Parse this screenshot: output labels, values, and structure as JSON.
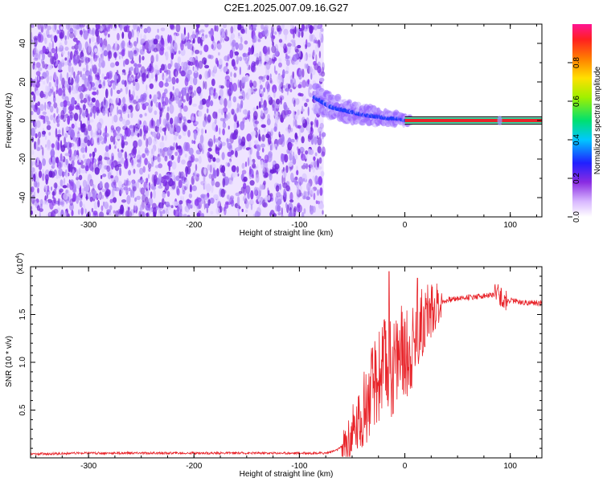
{
  "title": "C2E1.2025.007.09.16.G27",
  "colors": {
    "noise": "#7a2ee0",
    "ridge_red": "#e8242a",
    "snr_line": "#e8242a"
  },
  "chart_data": [
    {
      "type": "heatmap",
      "xlabel": "Height of straight line (km)",
      "ylabel": "Frequency (Hz)",
      "xlim": [
        -355,
        130
      ],
      "ylim": [
        -50,
        50
      ],
      "xticks": [
        -300,
        -200,
        -100,
        0,
        100
      ],
      "yticks": [
        -40,
        -20,
        0,
        20,
        40
      ],
      "xtick_labels": [
        "-300",
        "-200",
        "-100",
        "0",
        "100"
      ],
      "ytick_labels": [
        "-40",
        "-20",
        "0",
        "20",
        "40"
      ],
      "noise_region_x": [
        -355,
        -77
      ],
      "ridge": {
        "x": [
          -85,
          -70,
          -55,
          -40,
          -25,
          -15,
          -5,
          0,
          20,
          60,
          90,
          130
        ],
        "y": [
          12,
          7,
          5,
          3,
          2,
          1,
          1,
          0,
          0,
          0,
          0,
          0
        ]
      },
      "colorbar": {
        "label": "Normalized spectral amplitude",
        "ticks": [
          0.0,
          0.2,
          0.4,
          0.6,
          0.8
        ],
        "tick_labels": [
          "0.0",
          "0.2",
          "0.4",
          "0.6",
          "0.8"
        ],
        "range": [
          0,
          1
        ]
      }
    },
    {
      "type": "line",
      "xlabel": "Height of straight line (km)",
      "ylabel": "SNR (10 * v/v)",
      "exponent_label": "(x10",
      "exponent_sup": "4",
      "exponent_close": ")",
      "xlim": [
        -355,
        130
      ],
      "ylim": [
        0,
        2.0
      ],
      "xticks": [
        -300,
        -200,
        -100,
        0,
        100
      ],
      "yticks": [
        0.5,
        1.0,
        1.5
      ],
      "xtick_labels": [
        "-300",
        "-200",
        "-100",
        "0",
        "100"
      ],
      "ytick_labels": [
        "0.5",
        "1.0",
        "1.5"
      ],
      "series": [
        {
          "x": [
            -355,
            -300,
            -200,
            -100,
            -75,
            -65,
            -55,
            -50,
            -45,
            -40,
            -35,
            -30,
            -25,
            -20,
            -15,
            -10,
            -5,
            0,
            5,
            10,
            15,
            20,
            25,
            30,
            35,
            40,
            50,
            60,
            70,
            80,
            85,
            90,
            95,
            100,
            110,
            120,
            130
          ],
          "y": [
            0.04,
            0.05,
            0.05,
            0.05,
            0.05,
            0.08,
            0.15,
            0.25,
            0.35,
            0.5,
            0.6,
            0.75,
            0.85,
            1.0,
            0.9,
            1.0,
            1.1,
            1.05,
            1.15,
            1.25,
            1.4,
            1.5,
            1.55,
            1.6,
            1.63,
            1.65,
            1.67,
            1.68,
            1.69,
            1.7,
            1.7,
            1.72,
            1.62,
            1.65,
            1.63,
            1.62,
            1.62
          ]
        }
      ]
    }
  ]
}
